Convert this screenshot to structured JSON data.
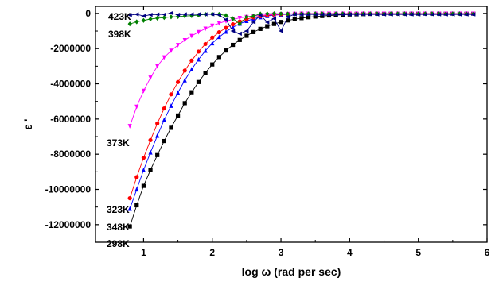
{
  "chart_data": {
    "type": "scatter",
    "xlabel": "log ω (rad per sec)",
    "ylabel": "ε '",
    "xlim": [
      0.3,
      6.0
    ],
    "ylim": [
      -13000000,
      400000
    ],
    "xticks": [
      1,
      2,
      3,
      4,
      5,
      6
    ],
    "yticks": [
      0,
      -2000000,
      -4000000,
      -6000000,
      -8000000,
      -10000000,
      -12000000
    ],
    "ytick_labels": [
      "0",
      "-2000000",
      "-4000000",
      "-6000000",
      "-8000000",
      "-10000000",
      "-12000000"
    ],
    "grid": false,
    "legend": "none",
    "x_start": 0.8,
    "x_end": 5.8,
    "points_per_series": 51,
    "series": [
      {
        "name": "298K",
        "label": "298K",
        "color": "#000000",
        "marker": "square",
        "values": [
          -12100000,
          -10900000,
          -9800000,
          -8900000,
          -8050000,
          -7250000,
          -6500000,
          -5800000,
          -5100000,
          -4480000,
          -3900000,
          -3380000,
          -2900000,
          -2480000,
          -2110000,
          -1790000,
          -1510000,
          -1270000,
          -1060000,
          -880000,
          -730000,
          -600000,
          -490000,
          -400000,
          -330000,
          -270000,
          -220000,
          -180000,
          -150000,
          -120000,
          -100000,
          -80000,
          -60000,
          -50000,
          -40000,
          -30000,
          -20000,
          -20000,
          -10000,
          -10000,
          -10000,
          -10000,
          -10000,
          -10000,
          -10000,
          -10000,
          -10000,
          -10000,
          -10000,
          -10000,
          -10000
        ]
      },
      {
        "name": "348K",
        "label": "348K",
        "color": "#0000ff",
        "marker": "triangle-up",
        "values": [
          -11100000,
          -10000000,
          -8900000,
          -7900000,
          -6950000,
          -6050000,
          -5250000,
          -4500000,
          -3800000,
          -3180000,
          -2620000,
          -2120000,
          -1700000,
          -1340000,
          -1040000,
          -790000,
          -590000,
          -430000,
          -310000,
          -220000,
          -150000,
          -100000,
          -70000,
          -50000,
          -30000,
          -20000,
          -20000,
          -10000,
          -10000,
          -10000,
          -10000,
          -10000,
          -10000,
          -10000,
          -10000,
          -10000,
          -10000,
          -10000,
          -10000,
          -10000,
          -10000,
          -10000,
          -10000,
          -10000,
          -10000,
          -10000,
          -10000,
          -10000,
          -10000,
          -10000,
          -10000
        ]
      },
      {
        "name": "323K",
        "label": "323K",
        "color": "#ff0000",
        "marker": "circle",
        "values": [
          -10500000,
          -9300000,
          -8200000,
          -7200000,
          -6250000,
          -5400000,
          -4600000,
          -3900000,
          -3250000,
          -2680000,
          -2170000,
          -1740000,
          -1370000,
          -1070000,
          -820000,
          -620000,
          -460000,
          -330000,
          -230000,
          -160000,
          -110000,
          -70000,
          -50000,
          -30000,
          -20000,
          -10000,
          -10000,
          -10000,
          -10000,
          -10000,
          -10000,
          -10000,
          -10000,
          -10000,
          -10000,
          -10000,
          -10000,
          -10000,
          -10000,
          -10000,
          -10000,
          -10000,
          -10000,
          -10000,
          -10000,
          -10000,
          -10000,
          -10000,
          -10000,
          -10000,
          -10000
        ]
      },
      {
        "name": "373K",
        "label": "373K",
        "color": "#ff00ff",
        "marker": "triangle-down",
        "values": [
          -6400000,
          -5300000,
          -4400000,
          -3650000,
          -3000000,
          -2500000,
          -2120000,
          -1800000,
          -1520000,
          -1280000,
          -1060000,
          -870000,
          -700000,
          -560000,
          -440000,
          -340000,
          -260000,
          -200000,
          -150000,
          -110000,
          -80000,
          -60000,
          -40000,
          -30000,
          -20000,
          -10000,
          -10000,
          -10000,
          -10000,
          -10000,
          -10000,
          -10000,
          -10000,
          -10000,
          -10000,
          -10000,
          -10000,
          -10000,
          -10000,
          -10000,
          -10000,
          -10000,
          -10000,
          -10000,
          -10000,
          -10000,
          -10000,
          -10000,
          -10000,
          -10000,
          -10000
        ]
      },
      {
        "name": "398K",
        "label": "398K",
        "color": "#008000",
        "marker": "diamond",
        "values": [
          -600000,
          -480000,
          -400000,
          -320000,
          -270000,
          -240000,
          -200000,
          -180000,
          -150000,
          -130000,
          -100000,
          -50000,
          -40000,
          -50000,
          -120000,
          -300000,
          -600000,
          -200000,
          -150000,
          -30000,
          -20000,
          -10000,
          -20000,
          -30000,
          -30000,
          -20000,
          -20000,
          -20000,
          -20000,
          -20000,
          -20000,
          -20000,
          -20000,
          -20000,
          -20000,
          -20000,
          -20000,
          -20000,
          -20000,
          -20000,
          -20000,
          -20000,
          -20000,
          -20000,
          -20000,
          -20000,
          -20000,
          -20000,
          -20000,
          -20000,
          -20000
        ]
      },
      {
        "name": "423K",
        "label": "423K",
        "color": "#000080",
        "marker": "triangle-left",
        "values": [
          -100000,
          -50000,
          -150000,
          -80000,
          -60000,
          -60000,
          20000,
          -80000,
          -50000,
          -50000,
          -50000,
          -50000,
          -50000,
          -90000,
          -350000,
          -1000000,
          -1150000,
          -1000000,
          -500000,
          -100000,
          -500000,
          -300000,
          -1000000,
          -200000,
          -50000,
          -60000,
          -60000,
          -60000,
          -60000,
          -60000,
          -60000,
          -60000,
          -60000,
          -60000,
          -60000,
          -60000,
          -60000,
          -60000,
          -60000,
          -60000,
          -60000,
          -60000,
          -60000,
          -60000,
          -60000,
          -60000,
          -60000,
          -60000,
          -60000,
          -60000,
          -60000
        ]
      }
    ]
  },
  "colors": {
    "frame": "#000000",
    "background": "#ffffff"
  }
}
